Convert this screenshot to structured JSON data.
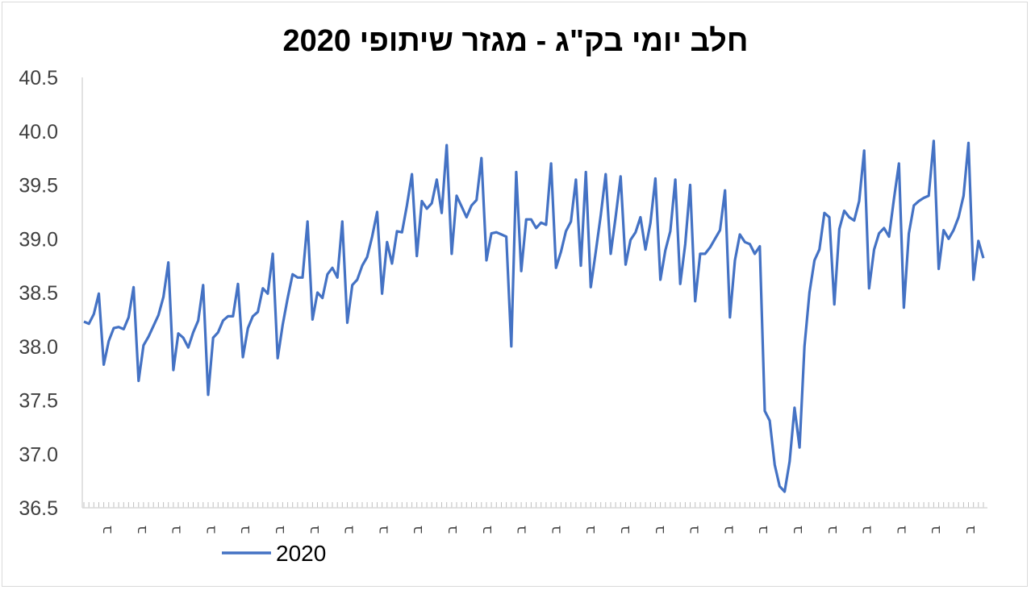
{
  "chart_data": {
    "type": "line",
    "title": "חלב יומי בק\"ג - מגזר שיתופי 2020",
    "xlabel": "",
    "ylabel": "",
    "ylim": [
      36.5,
      40.5
    ],
    "yticks": [
      "36.5",
      "37.0",
      "37.5",
      "38.0",
      "38.5",
      "39.0",
      "39.5",
      "40.0",
      "40.5"
    ],
    "xtick_label": "ב",
    "xtick_count": 26,
    "grid": false,
    "legend_position": "bottom-left",
    "series_color": "#4472C4",
    "series": [
      {
        "name": "2020",
        "values": [
          38.23,
          38.21,
          38.3,
          38.49,
          37.83,
          38.05,
          38.17,
          38.18,
          38.16,
          38.27,
          38.55,
          37.68,
          38.01,
          38.09,
          38.19,
          38.29,
          38.46,
          38.78,
          37.78,
          38.12,
          38.08,
          37.99,
          38.13,
          38.24,
          38.57,
          37.55,
          38.08,
          38.13,
          38.24,
          38.28,
          38.28,
          38.58,
          37.9,
          38.17,
          38.28,
          38.32,
          38.54,
          38.49,
          38.86,
          37.89,
          38.2,
          38.45,
          38.67,
          38.64,
          38.64,
          39.16,
          38.25,
          38.5,
          38.45,
          38.67,
          38.73,
          38.64,
          39.16,
          38.22,
          38.57,
          38.62,
          38.75,
          38.83,
          39.02,
          39.25,
          38.49,
          38.97,
          38.77,
          39.07,
          39.06,
          39.31,
          39.6,
          38.84,
          39.35,
          39.28,
          39.33,
          39.55,
          39.24,
          39.87,
          38.86,
          39.4,
          39.3,
          39.2,
          39.31,
          39.36,
          39.75,
          38.8,
          39.05,
          39.06,
          39.04,
          39.02,
          38.0,
          39.62,
          38.7,
          39.18,
          39.18,
          39.1,
          39.15,
          39.13,
          39.7,
          38.73,
          38.88,
          39.07,
          39.16,
          39.55,
          38.75,
          39.62,
          38.55,
          38.88,
          39.22,
          39.6,
          38.86,
          39.2,
          39.58,
          38.76,
          38.99,
          39.06,
          39.2,
          38.9,
          39.15,
          39.56,
          38.62,
          38.89,
          39.07,
          39.55,
          38.58,
          38.95,
          39.5,
          38.42,
          38.86,
          38.86,
          38.92,
          39.0,
          39.08,
          39.45,
          38.27,
          38.8,
          39.04,
          38.97,
          38.95,
          38.86,
          38.93,
          37.4,
          37.31,
          36.9,
          36.7,
          36.65,
          36.93,
          37.43,
          37.06,
          38.0,
          38.5,
          38.8,
          38.9,
          39.24,
          39.2,
          38.39,
          39.09,
          39.26,
          39.2,
          39.17,
          39.35,
          39.82,
          38.54,
          38.9,
          39.05,
          39.1,
          39.02,
          39.37,
          39.7,
          38.36,
          39.05,
          39.31,
          39.35,
          39.38,
          39.4,
          39.91,
          38.72,
          39.08,
          39.0,
          39.08,
          39.2,
          39.4,
          39.89,
          38.62,
          38.98,
          38.82
        ]
      }
    ]
  }
}
